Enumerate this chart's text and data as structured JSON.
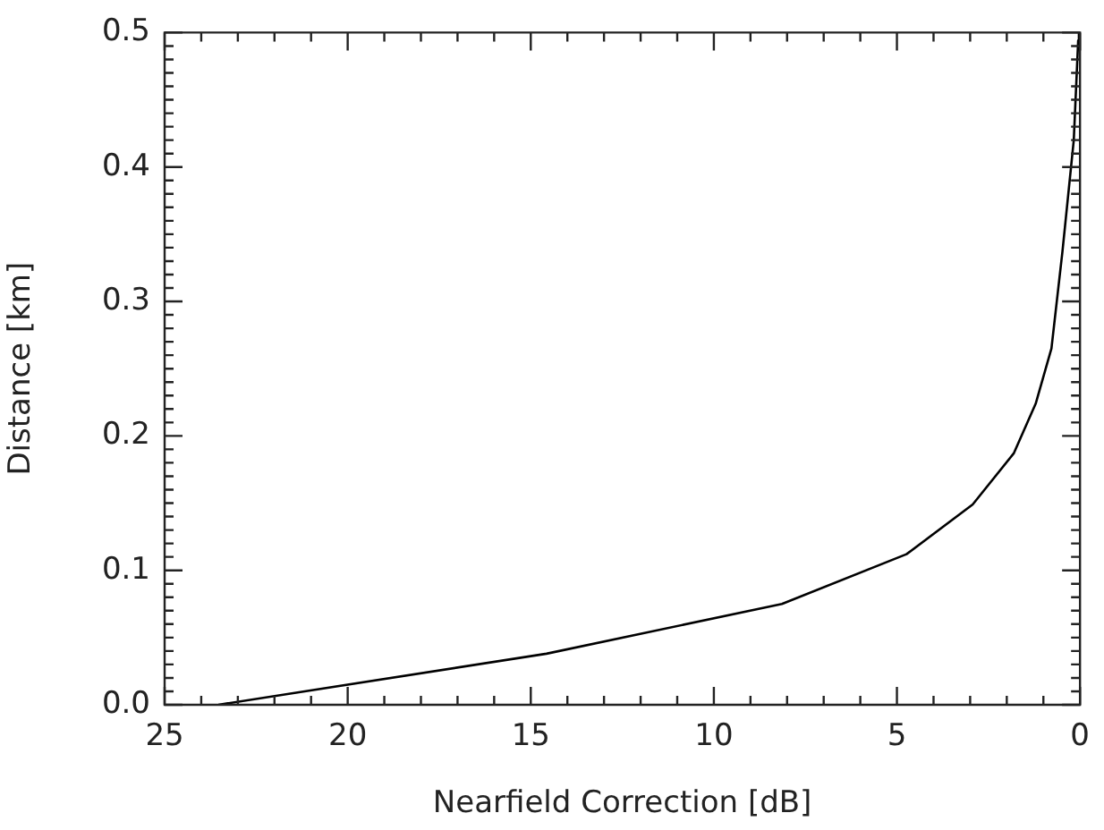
{
  "chart_data": {
    "type": "line",
    "xlabel": "Nearfield Correction [dB]",
    "ylabel": "Distance [km]",
    "x": [
      23.53,
      14.57,
      8.14,
      4.74,
      2.93,
      1.81,
      1.21,
      0.78,
      0.48,
      0.17,
      0.05,
      0.03
    ],
    "series": [
      {
        "color": "#000000",
        "values": [
          0,
          0.038,
          0.075,
          0.112,
          0.149,
          0.187,
          0.224,
          0.265,
          0.337,
          0.42,
          0.494,
          0.5
        ]
      }
    ],
    "xlim": [
      25,
      0
    ],
    "ylim": [
      0,
      0.5
    ],
    "xticks": [
      {
        "value": 25,
        "label": "25"
      },
      {
        "value": 24,
        "label": null
      },
      {
        "value": 23,
        "label": null
      },
      {
        "value": 22,
        "label": null
      },
      {
        "value": 21,
        "label": null
      },
      {
        "value": 20,
        "label": "20"
      },
      {
        "value": 19,
        "label": null
      },
      {
        "value": 18,
        "label": null
      },
      {
        "value": 17,
        "label": null
      },
      {
        "value": 16,
        "label": null
      },
      {
        "value": 15,
        "label": "15"
      },
      {
        "value": 14,
        "label": null
      },
      {
        "value": 13,
        "label": null
      },
      {
        "value": 12,
        "label": null
      },
      {
        "value": 11,
        "label": null
      },
      {
        "value": 10,
        "label": "10"
      },
      {
        "value": 9,
        "label": null
      },
      {
        "value": 8,
        "label": null
      },
      {
        "value": 7,
        "label": null
      },
      {
        "value": 6,
        "label": null
      },
      {
        "value": 5,
        "label": "5"
      },
      {
        "value": 4,
        "label": null
      },
      {
        "value": 3,
        "label": null
      },
      {
        "value": 2,
        "label": null
      },
      {
        "value": 1,
        "label": null
      },
      {
        "value": 0,
        "label": "0"
      }
    ],
    "yticks": [
      {
        "value": 0,
        "label": "0.0"
      },
      {
        "value": 0.01,
        "label": null
      },
      {
        "value": 0.02,
        "label": null
      },
      {
        "value": 0.03,
        "label": null
      },
      {
        "value": 0.04,
        "label": null
      },
      {
        "value": 0.05,
        "label": null
      },
      {
        "value": 0.06,
        "label": null
      },
      {
        "value": 0.07,
        "label": null
      },
      {
        "value": 0.08,
        "label": null
      },
      {
        "value": 0.09,
        "label": null
      },
      {
        "value": 0.1,
        "label": "0.1"
      },
      {
        "value": 0.11,
        "label": null
      },
      {
        "value": 0.12,
        "label": null
      },
      {
        "value": 0.13,
        "label": null
      },
      {
        "value": 0.14,
        "label": null
      },
      {
        "value": 0.15,
        "label": null
      },
      {
        "value": 0.16,
        "label": null
      },
      {
        "value": 0.17,
        "label": null
      },
      {
        "value": 0.18,
        "label": null
      },
      {
        "value": 0.19,
        "label": null
      },
      {
        "value": 0.2,
        "label": "0.2"
      },
      {
        "value": 0.21,
        "label": null
      },
      {
        "value": 0.22,
        "label": null
      },
      {
        "value": 0.23,
        "label": null
      },
      {
        "value": 0.24,
        "label": null
      },
      {
        "value": 0.25,
        "label": null
      },
      {
        "value": 0.26,
        "label": null
      },
      {
        "value": 0.27,
        "label": null
      },
      {
        "value": 0.28,
        "label": null
      },
      {
        "value": 0.29,
        "label": null
      },
      {
        "value": 0.3,
        "label": "0.3"
      },
      {
        "value": 0.31,
        "label": null
      },
      {
        "value": 0.32,
        "label": null
      },
      {
        "value": 0.33,
        "label": null
      },
      {
        "value": 0.34,
        "label": null
      },
      {
        "value": 0.35,
        "label": null
      },
      {
        "value": 0.36,
        "label": null
      },
      {
        "value": 0.37,
        "label": null
      },
      {
        "value": 0.38,
        "label": null
      },
      {
        "value": 0.39,
        "label": null
      },
      {
        "value": 0.4,
        "label": "0.4"
      },
      {
        "value": 0.41,
        "label": null
      },
      {
        "value": 0.42,
        "label": null
      },
      {
        "value": 0.43,
        "label": null
      },
      {
        "value": 0.44,
        "label": null
      },
      {
        "value": 0.45,
        "label": null
      },
      {
        "value": 0.46,
        "label": null
      },
      {
        "value": 0.47,
        "label": null
      },
      {
        "value": 0.48,
        "label": null
      },
      {
        "value": 0.49,
        "label": null
      },
      {
        "value": 0.5,
        "label": "0.5"
      }
    ],
    "grid": false,
    "legend": false,
    "marker": "none",
    "line_style": "solid"
  }
}
